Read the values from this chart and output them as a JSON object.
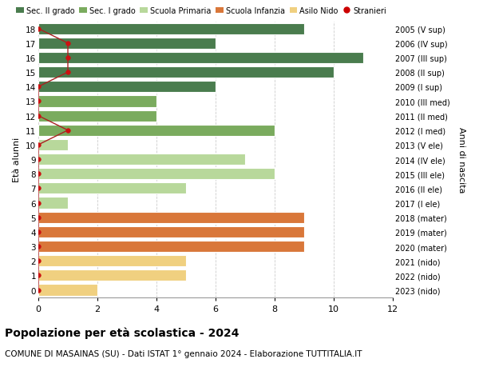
{
  "ages": [
    18,
    17,
    16,
    15,
    14,
    13,
    12,
    11,
    10,
    9,
    8,
    7,
    6,
    5,
    4,
    3,
    2,
    1,
    0
  ],
  "years_labels": [
    "2005 (V sup)",
    "2006 (IV sup)",
    "2007 (III sup)",
    "2008 (II sup)",
    "2009 (I sup)",
    "2010 (III med)",
    "2011 (II med)",
    "2012 (I med)",
    "2013 (V ele)",
    "2014 (IV ele)",
    "2015 (III ele)",
    "2016 (II ele)",
    "2017 (I ele)",
    "2018 (mater)",
    "2019 (mater)",
    "2020 (mater)",
    "2021 (nido)",
    "2022 (nido)",
    "2023 (nido)"
  ],
  "bar_values": [
    9,
    6,
    11,
    10,
    6,
    4,
    4,
    8,
    1,
    7,
    8,
    5,
    1,
    9,
    9,
    9,
    5,
    5,
    2
  ],
  "bar_colors": [
    "#4a7c4e",
    "#4a7c4e",
    "#4a7c4e",
    "#4a7c4e",
    "#4a7c4e",
    "#7aab5e",
    "#7aab5e",
    "#7aab5e",
    "#b8d89b",
    "#b8d89b",
    "#b8d89b",
    "#b8d89b",
    "#b8d89b",
    "#d9773a",
    "#d9773a",
    "#d9773a",
    "#f0d080",
    "#f0d080",
    "#f0d080"
  ],
  "stranieri_x": [
    0,
    1,
    1,
    1,
    0,
    0,
    0,
    1,
    0,
    0,
    0,
    0,
    0,
    0,
    0,
    0,
    0,
    0,
    0
  ],
  "legend_labels": [
    "Sec. II grado",
    "Sec. I grado",
    "Scuola Primaria",
    "Scuola Infanzia",
    "Asilo Nido",
    "Stranieri"
  ],
  "legend_colors": [
    "#4a7c4e",
    "#7aab5e",
    "#b8d89b",
    "#d9773a",
    "#f0d080",
    "#cc0000"
  ],
  "title_main": "Popolazione per età scolastica - 2024",
  "title_sub": "COMUNE DI MASAINAS (SU) - Dati ISTAT 1° gennaio 2024 - Elaborazione TUTTITALIA.IT",
  "ylabel_left": "Età alunni",
  "ylabel_right": "Anni di nascita",
  "xlim": [
    0,
    12
  ],
  "ylim": [
    -0.5,
    18.5
  ],
  "bg_color": "#ffffff",
  "grid_color": "#cccccc"
}
